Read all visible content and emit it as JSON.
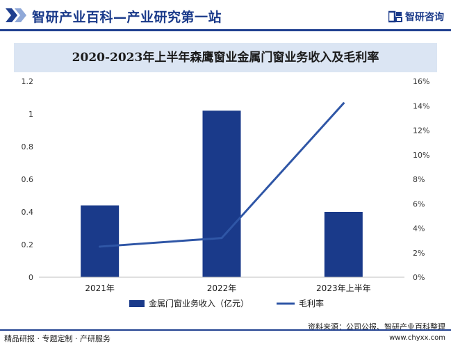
{
  "header": {
    "title": "智研产业百科—产业研究第一站",
    "brand": "智研咨询"
  },
  "footer": {
    "left": "精品研报 · 专题定制 · 产研服务",
    "source": "资料来源：公司公报、智研产业百科整理",
    "url": "www.chyxx.com"
  },
  "colors": {
    "bar": "#1a3a8a",
    "line": "#2f56a6",
    "header_rule": "#1f3f8f",
    "title_band": "#dbe5f3"
  },
  "chart_data": {
    "type": "bar",
    "title": "2020-2023年上半年森鹰窗业金属门窗业务收入及毛利率",
    "categories": [
      "2021年",
      "2022年",
      "2023年上半年"
    ],
    "series": [
      {
        "name": "金属门窗业务收入（亿元）",
        "type": "bar",
        "axis": "left",
        "values": [
          0.44,
          1.02,
          0.4
        ]
      },
      {
        "name": "毛利率",
        "type": "line",
        "axis": "right",
        "values": [
          2.5,
          3.2,
          14.2
        ]
      }
    ],
    "y_left": {
      "min": 0,
      "max": 1.2,
      "ticks": [
        "0",
        "0.2",
        "0.4",
        "0.6",
        "0.8",
        "1",
        "1.2"
      ]
    },
    "y_right": {
      "min": 0,
      "max": 16,
      "ticks": [
        "0%",
        "2%",
        "4%",
        "6%",
        "8%",
        "10%",
        "12%",
        "14%",
        "16%"
      ]
    },
    "grid": false,
    "legend_position": "bottom"
  }
}
